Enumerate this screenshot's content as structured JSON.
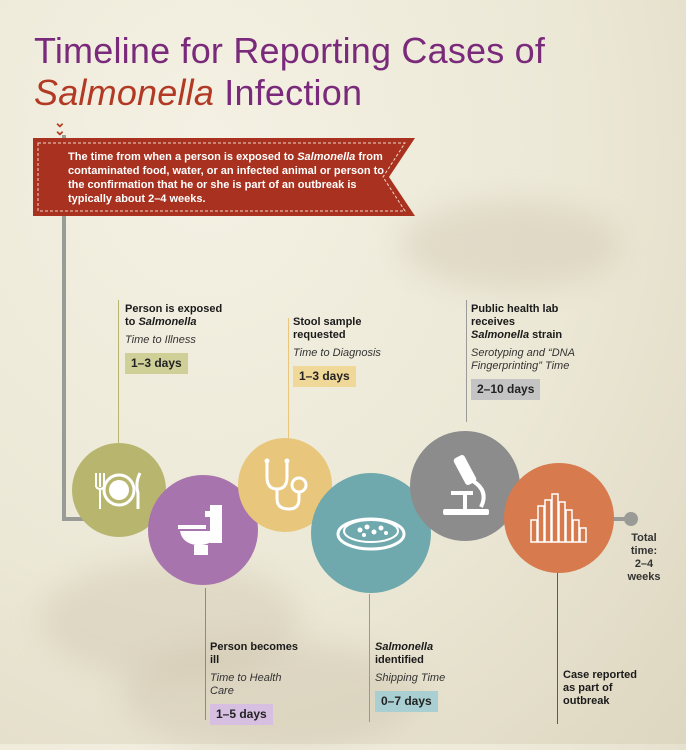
{
  "title": {
    "line1": "Timeline for Reporting Cases of",
    "line2_italic": "Salmonella",
    "line2_rest": " Infection"
  },
  "banner": {
    "text_before": "The time from when a person is exposed to ",
    "text_italic": "Salmonella",
    "text_after": " from contaminated food, water, or an infected animal or person to the confirmation that he or she is part of an outbreak is typically about 2–4 weeks.",
    "color": "#a8321f"
  },
  "steps": [
    {
      "heading_pre": "Person is exposed to ",
      "heading_italic": "Salmonella",
      "heading_post": "",
      "sublabel": "Time to Illness",
      "duration": "1–3 days",
      "badge_color": "#cfcf98",
      "circle_color": "#b7b56e",
      "icon": "plate-fork-knife-icon"
    },
    {
      "heading_pre": "Person becomes ill",
      "heading_italic": "",
      "heading_post": "",
      "sublabel": "Time to Health Care",
      "duration": "1–5 days",
      "badge_color": "#d6bfe0",
      "circle_color": "#a874ad",
      "icon": "toilet-icon"
    },
    {
      "heading_pre": "Stool sample requested",
      "heading_italic": "",
      "heading_post": "",
      "sublabel": "Time to Diagnosis",
      "duration": "1–3 days",
      "badge_color": "#f0d898",
      "circle_color": "#e8c77c",
      "icon": "stethoscope-icon"
    },
    {
      "heading_pre": "",
      "heading_italic": "Salmonella",
      "heading_post": " identified",
      "sublabel": "Shipping Time",
      "duration": "0–7 days",
      "badge_color": "#a9cfd3",
      "circle_color": "#6fa9ad",
      "icon": "petri-dish-icon"
    },
    {
      "heading_pre": "Public health lab receives ",
      "heading_italic": "Salmonella",
      "heading_post": " strain",
      "sublabel": "Serotyping and “DNA Fingerprinting” Time",
      "duration": "2–10 days",
      "badge_color": "#c4c4c4",
      "circle_color": "#8c8c8c",
      "icon": "microscope-icon"
    },
    {
      "heading_pre": "Case reported as part of outbreak",
      "heading_italic": "",
      "heading_post": "",
      "sublabel": "",
      "duration": "",
      "badge_color": "",
      "circle_color": "#d77a4e",
      "icon": "epi-curve-icon"
    }
  ],
  "total": {
    "line1": "Total",
    "line2": "time:",
    "line3": "2–4",
    "line4": "weeks"
  }
}
